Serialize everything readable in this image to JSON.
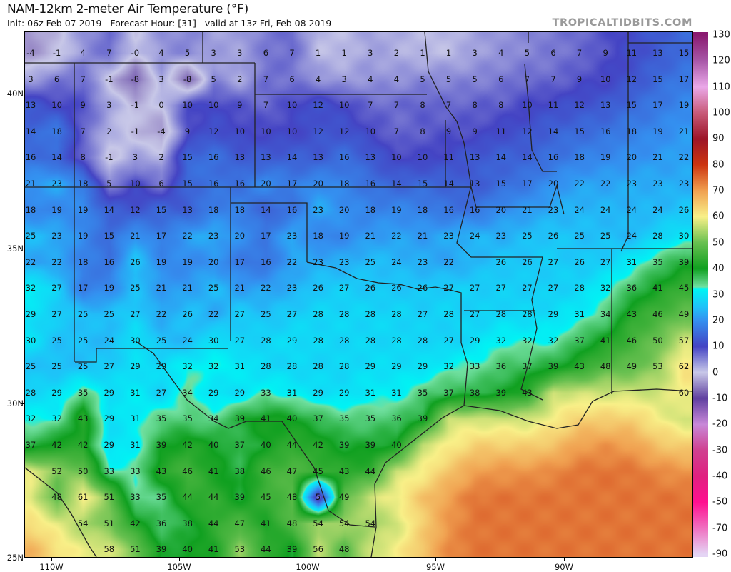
{
  "header": {
    "title": "NAM-12km 2-meter Air Temperature (°F)",
    "subtitle": "Init: 06z Feb 07 2019   Forecast Hour: [31]   valid at 13z Fri, Feb 08 2019",
    "brand": "TROPICALTIDBITS.COM"
  },
  "axes": {
    "lat_labels": [
      "40N",
      "35N",
      "30N",
      "25N"
    ],
    "lon_labels": [
      "110W",
      "105W",
      "100W",
      "95W",
      "90W"
    ]
  },
  "colorbar": {
    "labels": [
      "130",
      "120",
      "110",
      "100",
      "90",
      "80",
      "70",
      "60",
      "50",
      "40",
      "30",
      "20",
      "10",
      "0",
      "-10",
      "-20",
      "-30",
      "-40",
      "-50",
      "-70",
      "-90"
    ],
    "stops": [
      {
        "value": 130,
        "color": "#8a1a70"
      },
      {
        "value": 120,
        "color": "#a858a8"
      },
      {
        "value": 110,
        "color": "#eaa8e8"
      },
      {
        "value": 100,
        "color": "#c85a78"
      },
      {
        "value": 90,
        "color": "#9c1428"
      },
      {
        "value": 80,
        "color": "#cc3410"
      },
      {
        "value": 70,
        "color": "#f0a050"
      },
      {
        "value": 60,
        "color": "#f8f088"
      },
      {
        "value": 50,
        "color": "#68c050"
      },
      {
        "value": 40,
        "color": "#10a020"
      },
      {
        "value": 33,
        "color": "#70e0a0"
      },
      {
        "value": 32,
        "color": "#00f4f4"
      },
      {
        "value": 25,
        "color": "#20c0f8"
      },
      {
        "value": 20,
        "color": "#3490f0"
      },
      {
        "value": 10,
        "color": "#4444c4"
      },
      {
        "value": 0,
        "color": "#c8c8e8"
      },
      {
        "value": -10,
        "color": "#6040a0"
      },
      {
        "value": -20,
        "color": "#c888d8"
      },
      {
        "value": -30,
        "color": "#d04090"
      },
      {
        "value": -40,
        "color": "#e02080"
      },
      {
        "value": -50,
        "color": "#ff1090"
      },
      {
        "value": -70,
        "color": "#f070c0"
      },
      {
        "value": -90,
        "color": "#e4d4f4"
      }
    ]
  },
  "grid": {
    "rows": [
      [
        "-4",
        "-1",
        "4",
        "7",
        "-0",
        "4",
        "5",
        "3",
        "3",
        "6",
        "7",
        "1",
        "1",
        "3",
        "2",
        "1",
        "1",
        "3",
        "4",
        "5",
        "6",
        "7",
        "9",
        "11",
        "13",
        "15"
      ],
      [
        "3",
        "6",
        "7",
        "-1",
        "-8",
        "3",
        "-8",
        "5",
        "2",
        "7",
        "6",
        "4",
        "3",
        "4",
        "4",
        "5",
        "5",
        "5",
        "6",
        "7",
        "7",
        "9",
        "10",
        "12",
        "15",
        "17"
      ],
      [
        "13",
        "10",
        "9",
        "3",
        "-1",
        "0",
        "10",
        "10",
        "9",
        "7",
        "10",
        "12",
        "10",
        "7",
        "7",
        "8",
        "7",
        "8",
        "8",
        "10",
        "11",
        "12",
        "13",
        "15",
        "17",
        "19"
      ],
      [
        "14",
        "18",
        "7",
        "2",
        "-1",
        "-4",
        "9",
        "12",
        "10",
        "10",
        "10",
        "12",
        "12",
        "10",
        "7",
        "8",
        "9",
        "9",
        "11",
        "12",
        "14",
        "15",
        "16",
        "18",
        "19",
        "21"
      ],
      [
        "16",
        "14",
        "8",
        "-1",
        "3",
        "2",
        "15",
        "16",
        "13",
        "13",
        "14",
        "13",
        "16",
        "13",
        "10",
        "10",
        "11",
        "13",
        "14",
        "14",
        "16",
        "18",
        "19",
        "20",
        "21",
        "22"
      ],
      [
        "21",
        "23",
        "18",
        "5",
        "10",
        "6",
        "15",
        "16",
        "16",
        "20",
        "17",
        "20",
        "18",
        "16",
        "14",
        "15",
        "14",
        "13",
        "15",
        "17",
        "20",
        "22",
        "22",
        "23",
        "23",
        "23"
      ],
      [
        "18",
        "19",
        "19",
        "14",
        "12",
        "15",
        "13",
        "18",
        "18",
        "14",
        "16",
        "23",
        "20",
        "18",
        "19",
        "18",
        "16",
        "16",
        "20",
        "21",
        "23",
        "24",
        "24",
        "24",
        "24",
        "26"
      ],
      [
        "25",
        "23",
        "19",
        "15",
        "21",
        "17",
        "22",
        "23",
        "20",
        "17",
        "23",
        "18",
        "19",
        "21",
        "22",
        "21",
        "23",
        "24",
        "23",
        "25",
        "26",
        "25",
        "25",
        "24",
        "28",
        "30"
      ],
      [
        "22",
        "22",
        "18",
        "16",
        "26",
        "19",
        "19",
        "20",
        "17",
        "16",
        "22",
        "23",
        "23",
        "25",
        "24",
        "23",
        "22",
        "",
        "26",
        "26",
        "27",
        "26",
        "27",
        "31",
        "35",
        "39"
      ],
      [
        "32",
        "27",
        "17",
        "19",
        "25",
        "21",
        "21",
        "25",
        "21",
        "22",
        "23",
        "26",
        "27",
        "26",
        "26",
        "26",
        "27",
        "27",
        "27",
        "27",
        "27",
        "28",
        "32",
        "36",
        "41",
        "45"
      ],
      [
        "29",
        "27",
        "25",
        "25",
        "27",
        "22",
        "26",
        "22",
        "27",
        "25",
        "27",
        "28",
        "28",
        "28",
        "28",
        "27",
        "28",
        "27",
        "28",
        "28",
        "29",
        "31",
        "34",
        "43",
        "46",
        "49"
      ],
      [
        "30",
        "25",
        "25",
        "24",
        "30",
        "25",
        "24",
        "30",
        "27",
        "28",
        "29",
        "28",
        "28",
        "28",
        "28",
        "28",
        "27",
        "29",
        "32",
        "32",
        "32",
        "37",
        "41",
        "46",
        "50",
        "57"
      ],
      [
        "25",
        "25",
        "25",
        "27",
        "29",
        "29",
        "32",
        "32",
        "31",
        "28",
        "28",
        "28",
        "28",
        "29",
        "29",
        "29",
        "32",
        "33",
        "36",
        "37",
        "39",
        "43",
        "48",
        "49",
        "53",
        "62"
      ],
      [
        "28",
        "29",
        "35",
        "29",
        "31",
        "27",
        "34",
        "29",
        "29",
        "33",
        "31",
        "29",
        "29",
        "31",
        "31",
        "35",
        "37",
        "38",
        "39",
        "43",
        "",
        "",
        "",
        "",
        "",
        "60"
      ],
      [
        "32",
        "32",
        "43",
        "29",
        "31",
        "35",
        "35",
        "34",
        "39",
        "41",
        "40",
        "37",
        "35",
        "35",
        "36",
        "39",
        "",
        "",
        "",
        "",
        "",
        "",
        "",
        "",
        "",
        ""
      ],
      [
        "37",
        "42",
        "42",
        "29",
        "31",
        "39",
        "42",
        "40",
        "37",
        "40",
        "44",
        "42",
        "39",
        "39",
        "40",
        "",
        "",
        "",
        "",
        "",
        "",
        "",
        "",
        "",
        "",
        ""
      ],
      [
        "",
        "52",
        "50",
        "33",
        "33",
        "43",
        "46",
        "41",
        "38",
        "46",
        "47",
        "45",
        "43",
        "44",
        "",
        "",
        "",
        "",
        "",
        "",
        "",
        "",
        "",
        "",
        "",
        ""
      ],
      [
        "",
        "48",
        "61",
        "51",
        "33",
        "35",
        "44",
        "44",
        "39",
        "45",
        "48",
        "5",
        "49",
        "",
        "",
        "",
        "",
        "",
        "",
        "",
        "",
        "",
        "",
        "",
        "",
        ""
      ],
      [
        "",
        "",
        "54",
        "51",
        "42",
        "36",
        "38",
        "44",
        "47",
        "41",
        "48",
        "54",
        "54",
        "54",
        "",
        "",
        "",
        "",
        "",
        "",
        "",
        "",
        "",
        "",
        "",
        ""
      ],
      [
        "",
        "",
        "",
        "58",
        "51",
        "39",
        "40",
        "41",
        "53",
        "44",
        "39",
        "56",
        "48",
        "",
        "",
        "",
        "",
        "",
        "",
        "",
        "",
        "",
        "",
        "",
        "",
        ""
      ]
    ]
  }
}
